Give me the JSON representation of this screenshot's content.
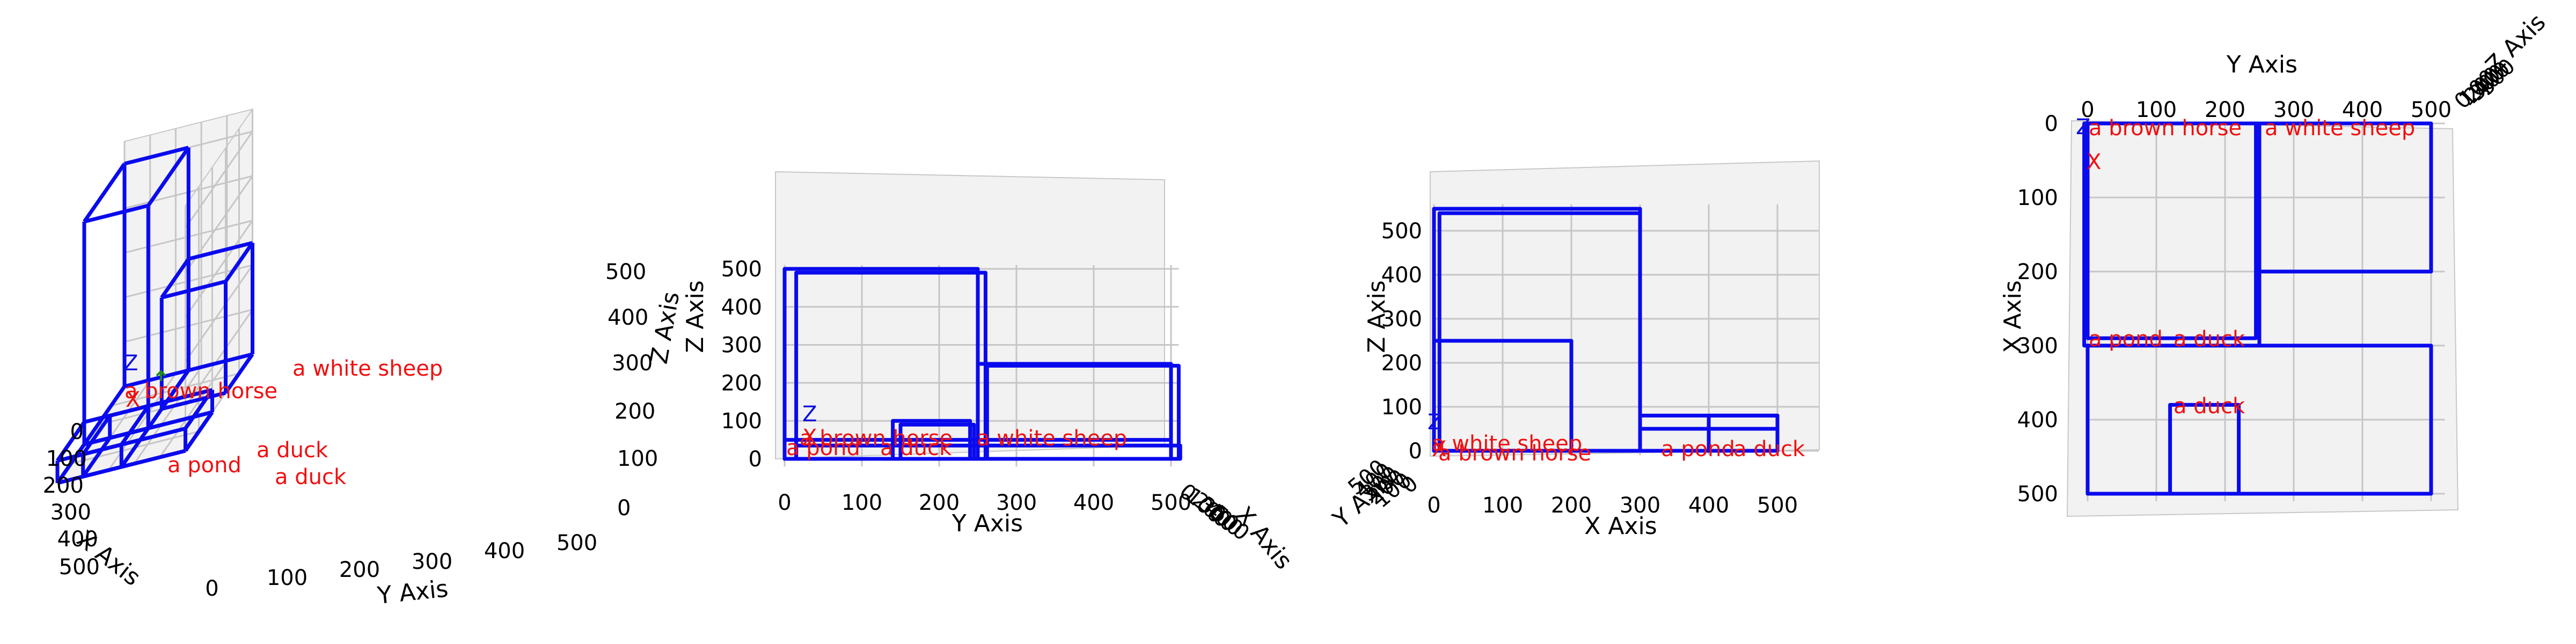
{
  "colors": {
    "box": "#0a0aee",
    "label": "#f01010",
    "axis_x": "#f01010",
    "axis_y": "#1a8a1a",
    "axis_z": "#1010e0",
    "pane": "#f2f2f2",
    "grid": "#c6c6c6"
  },
  "objects": {
    "brown_horse": "a brown horse",
    "white_sheep": "a white sheep",
    "pond": "a pond",
    "duck": "a duck"
  },
  "gizmo": {
    "x": "X",
    "z": "Z"
  },
  "views": {
    "iso": {
      "xlabel": "X Axis",
      "ylabel": "Y Axis",
      "zlabel": "Z Axis",
      "xticks": [
        "0",
        "100",
        "200",
        "300",
        "400",
        "500"
      ],
      "yticks": [
        "0",
        "100",
        "200",
        "300",
        "400",
        "500"
      ],
      "zticks": [
        "0",
        "100",
        "200",
        "300",
        "400",
        "500"
      ]
    },
    "front": {
      "ylabel": "Y Axis",
      "zlabel": "Z Axis",
      "xlabel": "X Axis",
      "yticks": [
        "0",
        "100",
        "200",
        "300",
        "400",
        "500"
      ],
      "zticks": [
        "0",
        "100",
        "200",
        "300",
        "400",
        "500"
      ],
      "xticks": [
        "0",
        "100",
        "200",
        "300",
        "400",
        "500"
      ]
    },
    "side": {
      "xlabel": "X Axis",
      "zlabel": "Z Axis",
      "ylabel": "Y Axis",
      "xticks": [
        "0",
        "100",
        "200",
        "300",
        "400",
        "500"
      ],
      "zticks": [
        "0",
        "100",
        "200",
        "300",
        "400",
        "500"
      ],
      "yticks": [
        "0",
        "100",
        "200",
        "300",
        "400",
        "500"
      ]
    },
    "top": {
      "ylabel": "Y Axis",
      "xlabel": "X Axis",
      "zlabel": "Z Axis",
      "yticks": [
        "0",
        "100",
        "200",
        "300",
        "400",
        "500"
      ],
      "xticks": [
        "0",
        "100",
        "200",
        "300",
        "400",
        "500"
      ],
      "zticks": [
        "0",
        "100",
        "200",
        "300",
        "400",
        "500"
      ]
    }
  }
}
